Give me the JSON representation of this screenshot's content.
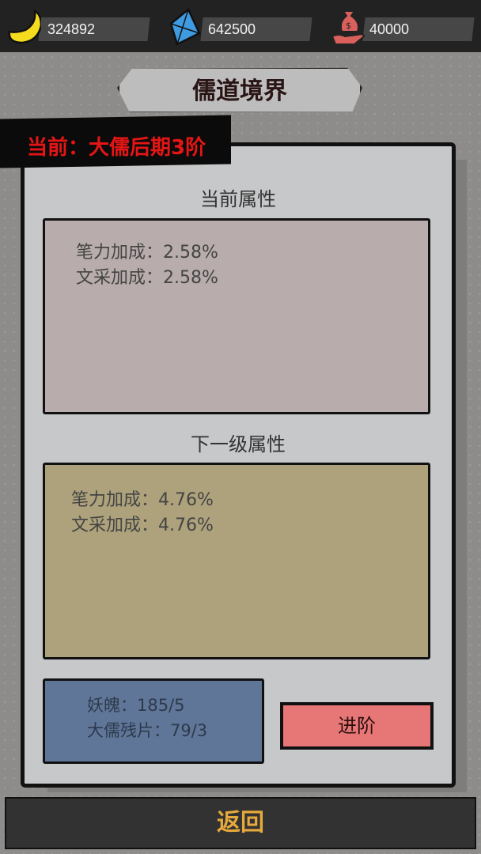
{
  "resources": [
    {
      "name": "gold-ingot-icon",
      "value": "324892",
      "color": "#f5dc1e"
    },
    {
      "name": "crystal-icon",
      "value": "642500",
      "color": "#3f9be0"
    },
    {
      "name": "money-bag-icon",
      "value": "40000",
      "color": "#d9605c"
    }
  ],
  "title": "儒道境界",
  "current_realm": "当前：大儒后期3阶",
  "current": {
    "heading": "当前属性",
    "attrs": [
      "笔力加成：2.58%",
      "文采加成：2.58%"
    ],
    "color": "#b8acac"
  },
  "next": {
    "heading": "下一级属性",
    "attrs": [
      "笔力加成：4.76%",
      "文采加成：4.76%"
    ],
    "color": "#ada27b"
  },
  "materials": [
    "妖魄：185/5",
    "大儒残片：79/3"
  ],
  "advance_label": "进阶",
  "back_label": "返回"
}
